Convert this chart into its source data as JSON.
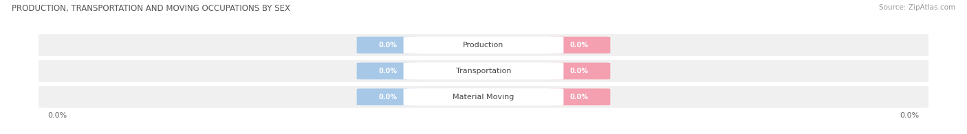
{
  "title": "PRODUCTION, TRANSPORTATION AND MOVING OCCUPATIONS BY SEX",
  "source": "Source: ZipAtlas.com",
  "categories": [
    "Material Moving",
    "Transportation",
    "Production"
  ],
  "male_color": "#a8c8e8",
  "female_color": "#f4a0b0",
  "bar_bg_color": "#e8e8e8",
  "row_bg_color": "#f0f0f0",
  "label_text_color": "#ffffff",
  "category_text_color": "#444444",
  "title_color": "#555555",
  "source_color": "#999999",
  "xlim_left_label": "0.0%",
  "xlim_right_label": "0.0%",
  "bar_height": 0.62,
  "background_color": "#ffffff",
  "fig_width": 14.06,
  "fig_height": 1.96
}
